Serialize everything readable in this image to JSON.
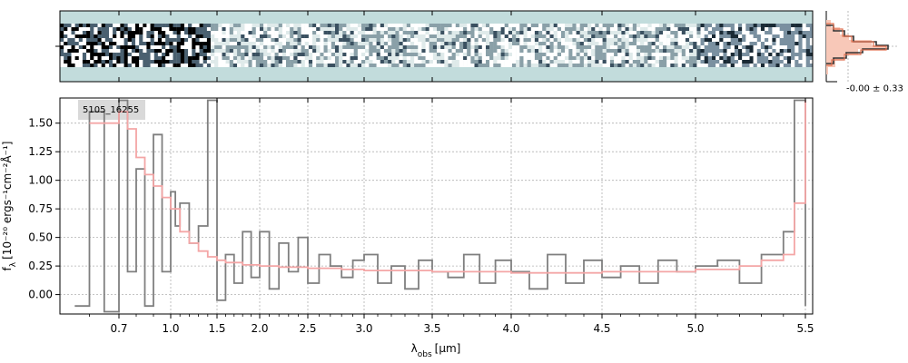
{
  "chart_data": [
    {
      "type": "line",
      "object_label": "5105_16255",
      "xlabel_main": "λ",
      "xlabel_sub": "obs",
      "xlabel_unit": "[μm]",
      "ylabel_main": "f",
      "ylabel_sub": "λ",
      "ylabel_unit": "[10⁻²⁰ ergs⁻¹cm⁻²Å⁻¹]",
      "xticks": [
        "0.7",
        "1.0",
        "1.5",
        "2.0",
        "2.5",
        "3.0",
        "3.5",
        "4.0",
        "4.5",
        "5.0",
        "5.5"
      ],
      "xtick_values": [
        0.7,
        1.0,
        1.5,
        2.0,
        2.5,
        3.0,
        3.5,
        4.0,
        4.5,
        5.0,
        5.5
      ],
      "yticks": [
        "0.00",
        "0.25",
        "0.50",
        "0.75",
        "1.00",
        "1.25",
        "1.50"
      ],
      "ytick_values": [
        0.0,
        0.25,
        0.5,
        0.75,
        1.0,
        1.25,
        1.5
      ],
      "xlim": [
        0.5,
        5.52
      ],
      "ylim": [
        -0.17,
        1.72
      ],
      "x_scale": "wavelength (nonlinear, prism dispersion)",
      "grid": true,
      "series": [
        {
          "color": "#7f7f7f",
          "style": "step",
          "x": [
            0.55,
            0.6,
            0.65,
            0.7,
            0.75,
            0.8,
            0.85,
            0.9,
            0.95,
            1.0,
            1.05,
            1.1,
            1.2,
            1.3,
            1.4,
            1.5,
            1.6,
            1.7,
            1.8,
            1.9,
            2.0,
            2.1,
            2.2,
            2.3,
            2.4,
            2.5,
            2.6,
            2.7,
            2.8,
            2.9,
            3.0,
            3.1,
            3.2,
            3.3,
            3.4,
            3.5,
            3.6,
            3.7,
            3.8,
            3.9,
            4.0,
            4.1,
            4.2,
            4.3,
            4.4,
            4.5,
            4.6,
            4.7,
            4.8,
            4.9,
            5.0,
            5.1,
            5.2,
            5.3,
            5.4,
            5.45,
            5.5
          ],
          "y": [
            -0.1,
            1.6,
            -0.15,
            1.7,
            0.2,
            1.1,
            -0.1,
            1.4,
            0.2,
            0.9,
            0.6,
            0.8,
            0.45,
            0.6,
            1.7,
            -0.05,
            0.35,
            0.1,
            0.55,
            0.15,
            0.55,
            0.05,
            0.45,
            0.2,
            0.5,
            0.1,
            0.35,
            0.25,
            0.15,
            0.3,
            0.35,
            0.1,
            0.25,
            0.05,
            0.3,
            0.2,
            0.15,
            0.35,
            0.1,
            0.3,
            0.2,
            0.05,
            0.35,
            0.1,
            0.3,
            0.15,
            0.25,
            0.1,
            0.3,
            0.2,
            0.25,
            0.3,
            0.1,
            0.35,
            0.55,
            1.7,
            -0.1
          ]
        },
        {
          "color": "#f4a6a6",
          "style": "step",
          "x": [
            0.6,
            0.7,
            0.75,
            0.8,
            0.85,
            0.9,
            0.95,
            1.0,
            1.1,
            1.2,
            1.3,
            1.4,
            1.5,
            1.6,
            1.8,
            2.0,
            2.2,
            2.5,
            2.8,
            3.0,
            3.5,
            4.0,
            4.5,
            5.0,
            5.2,
            5.3,
            5.4,
            5.45,
            5.5
          ],
          "y": [
            1.5,
            1.6,
            1.45,
            1.2,
            1.05,
            0.95,
            0.85,
            0.75,
            0.55,
            0.45,
            0.38,
            0.33,
            0.3,
            0.28,
            0.26,
            0.25,
            0.24,
            0.23,
            0.22,
            0.21,
            0.2,
            0.19,
            0.2,
            0.22,
            0.25,
            0.3,
            0.35,
            0.8,
            1.7
          ]
        }
      ]
    },
    {
      "type": "heatmap",
      "description_colors": [
        "#000000",
        "#c2dcdc",
        "#ffffff"
      ]
    },
    {
      "type": "histogram",
      "stat_label": "-0.00 ± 0.33",
      "color": "#e07050"
    }
  ]
}
